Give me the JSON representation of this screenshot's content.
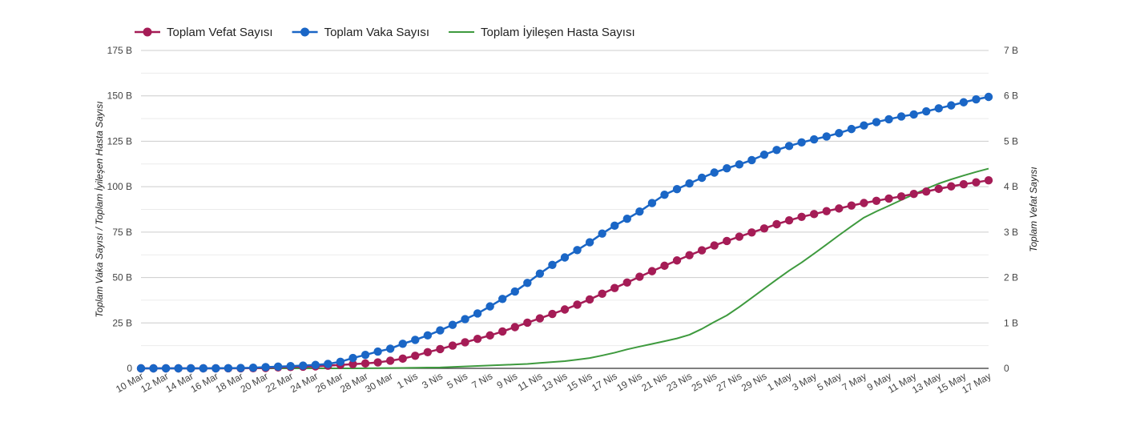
{
  "chart_data": {
    "type": "line",
    "title": "",
    "x": [
      "10 Mar",
      "11 Mar",
      "12 Mar",
      "13 Mar",
      "14 Mar",
      "15 Mar",
      "16 Mar",
      "17 Mar",
      "18 Mar",
      "19 Mar",
      "20 Mar",
      "21 Mar",
      "22 Mar",
      "23 Mar",
      "24 Mar",
      "25 Mar",
      "26 Mar",
      "27 Mar",
      "28 Mar",
      "29 Mar",
      "30 Mar",
      "31 Mar",
      "1 Nis",
      "2 Nis",
      "3 Nis",
      "4 Nis",
      "5 Nis",
      "6 Nis",
      "7 Nis",
      "8 Nis",
      "9 Nis",
      "10 Nis",
      "11 Nis",
      "12 Nis",
      "13 Nis",
      "14 Nis",
      "15 Nis",
      "16 Nis",
      "17 Nis",
      "18 Nis",
      "19 Nis",
      "20 Nis",
      "21 Nis",
      "22 Nis",
      "23 Nis",
      "24 Nis",
      "25 Nis",
      "26 Nis",
      "27 Nis",
      "28 Nis",
      "29 Nis",
      "30 Nis",
      "1 May",
      "2 May",
      "3 May",
      "4 May",
      "5 May",
      "6 May",
      "7 May",
      "8 May",
      "9 May",
      "10 May",
      "11 May",
      "12 May",
      "13 May",
      "14 May",
      "15 May",
      "16 May",
      "17 May"
    ],
    "x_tick_labels": [
      "10 Mar",
      "12 Mar",
      "14 Mar",
      "16 Mar",
      "18 Mar",
      "20 Mar",
      "22 Mar",
      "24 Mar",
      "26 Mar",
      "28 Mar",
      "30 Mar",
      "1 Nis",
      "3 Nis",
      "5 Nis",
      "7 Nis",
      "9 Nis",
      "11 Nis",
      "13 Nis",
      "15 Nis",
      "17 Nis",
      "19 Nis",
      "21 Nis",
      "23 Nis",
      "25 Nis",
      "27 Nis",
      "29 Nis",
      "1 May",
      "3 May",
      "5 May",
      "7 May",
      "9 May",
      "11 May",
      "13 May",
      "15 May",
      "17 May"
    ],
    "y_left": {
      "label": "Toplam Vaka Sayısı / Toplam İyileşen Hasta Sayısı",
      "ticks": [
        "0",
        "25 B",
        "50 B",
        "75 B",
        "100 B",
        "125 B",
        "150 B",
        "175 B"
      ],
      "ylim": [
        0,
        175000
      ]
    },
    "y_right": {
      "label": "Toplam Vefat Sayısı",
      "ticks": [
        "0",
        "1 B",
        "2 B",
        "3 B",
        "4 B",
        "5 B",
        "6 B",
        "7 B"
      ],
      "ylim": [
        0,
        7000
      ]
    },
    "grid": true,
    "legend_position": "top-left",
    "series": [
      {
        "name": "Toplam Vefat Sayısı",
        "axis": "right",
        "color": "#a51c56",
        "marker": "circle",
        "values": [
          0,
          0,
          0,
          0,
          0,
          0,
          0,
          1,
          2,
          4,
          9,
          21,
          30,
          37,
          44,
          59,
          75,
          92,
          108,
          131,
          168,
          214,
          277,
          356,
          425,
          501,
          574,
          649,
          725,
          812,
          908,
          1006,
          1101,
          1198,
          1296,
          1403,
          1518,
          1643,
          1769,
          1890,
          2017,
          2140,
          2259,
          2376,
          2491,
          2600,
          2706,
          2805,
          2900,
          2992,
          3081,
          3174,
          3258,
          3336,
          3397,
          3461,
          3520,
          3584,
          3641,
          3689,
          3739,
          3786,
          3841,
          3894,
          3952,
          4007,
          4055,
          4096,
          4140
        ]
      },
      {
        "name": "Toplam Vaka Sayısı",
        "axis": "left",
        "color": "#1a66c6",
        "marker": "circle",
        "values": [
          1,
          1,
          5,
          5,
          6,
          18,
          47,
          98,
          191,
          359,
          670,
          947,
          1236,
          1529,
          1872,
          2433,
          3629,
          5698,
          7402,
          9217,
          10827,
          13531,
          15679,
          18135,
          20921,
          23934,
          27069,
          30217,
          34109,
          38226,
          42282,
          47029,
          52167,
          56956,
          61049,
          65111,
          69392,
          74193,
          78546,
          82329,
          86306,
          90980,
          95591,
          98674,
          101790,
          104912,
          107773,
          110130,
          112261,
          114653,
          117589,
          120204,
          122392,
          124375,
          126045,
          127659,
          129491,
          131744,
          133721,
          135569,
          137115,
          138657,
          139771,
          141475,
          143114,
          144749,
          146457,
          148067,
          149435
        ]
      },
      {
        "name": "Toplam İyileşen Hasta Sayısı",
        "axis": "left",
        "color": "#3e9a3e",
        "marker": "none",
        "values": [
          0,
          0,
          0,
          0,
          0,
          0,
          0,
          0,
          0,
          0,
          0,
          0,
          0,
          0,
          0,
          0,
          0,
          0,
          70,
          105,
          162,
          243,
          333,
          415,
          484,
          786,
          1042,
          1326,
          1582,
          1846,
          2142,
          2423,
          2965,
          3446,
          3957,
          4799,
          5674,
          7089,
          8631,
          10453,
          11976,
          13430,
          14918,
          16477,
          18491,
          21737,
          25582,
          29140,
          33791,
          38809,
          43901,
          48886,
          53808,
          58259,
          63151,
          68166,
          73285,
          78202,
          82984,
          86396,
          89480,
          92691,
          95780,
          98889,
          101715,
          104030,
          106133,
          108137,
          109962
        ]
      }
    ]
  }
}
